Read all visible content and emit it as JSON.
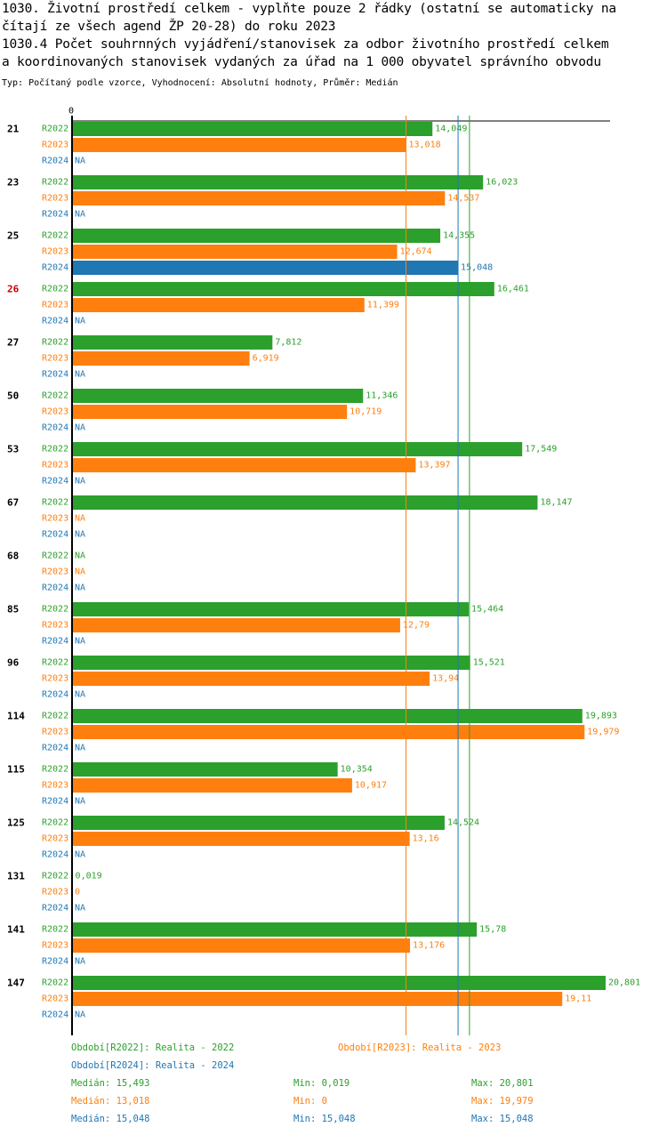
{
  "header": {
    "line1": "1030. Životní prostředí celkem - vyplňte pouze 2 řádky (ostatní se automaticky na",
    "line2": "čítají ze všech agend ŽP 20-28) do roku 2023",
    "line3": "1030.4 Počet souhrnných vyjádření/stanovisek za odbor životního prostředí celkem",
    "line4": "a koordinovaných stanovisek vydaných za úřad na 1 000 obyvatel správního obvodu",
    "subtitle": "Typ: Počítaný podle vzorce, Vyhodnocení: Absolutní hodnoty, Průměr: Medián"
  },
  "colors": {
    "R2022": "#2ca02c",
    "R2023": "#ff7f0e",
    "R2024": "#1f77b4",
    "highlight": "#cc0000"
  },
  "chart_data": {
    "type": "bar",
    "orientation": "horizontal",
    "axis_zero_label": "0",
    "xlim": [
      0,
      20.801
    ],
    "na_label": "NA",
    "highlight_group": "26",
    "series_names": [
      "R2022",
      "R2023",
      "R2024"
    ],
    "groups": [
      {
        "label": "21",
        "values": [
          {
            "v": 14.049,
            "t": "14,049"
          },
          {
            "v": 13.018,
            "t": "13,018"
          },
          {
            "v": null,
            "t": "NA"
          }
        ]
      },
      {
        "label": "23",
        "values": [
          {
            "v": 16.023,
            "t": "16,023"
          },
          {
            "v": 14.537,
            "t": "14,537"
          },
          {
            "v": null,
            "t": "NA"
          }
        ]
      },
      {
        "label": "25",
        "values": [
          {
            "v": 14.355,
            "t": "14,355"
          },
          {
            "v": 12.674,
            "t": "12,674"
          },
          {
            "v": 15.048,
            "t": "15,048"
          }
        ]
      },
      {
        "label": "26",
        "values": [
          {
            "v": 16.461,
            "t": "16,461"
          },
          {
            "v": 11.399,
            "t": "11,399"
          },
          {
            "v": null,
            "t": "NA"
          }
        ]
      },
      {
        "label": "27",
        "values": [
          {
            "v": 7.812,
            "t": "7,812"
          },
          {
            "v": 6.919,
            "t": "6,919"
          },
          {
            "v": null,
            "t": "NA"
          }
        ]
      },
      {
        "label": "50",
        "values": [
          {
            "v": 11.346,
            "t": "11,346"
          },
          {
            "v": 10.719,
            "t": "10,719"
          },
          {
            "v": null,
            "t": "NA"
          }
        ]
      },
      {
        "label": "53",
        "values": [
          {
            "v": 17.549,
            "t": "17,549"
          },
          {
            "v": 13.397,
            "t": "13,397"
          },
          {
            "v": null,
            "t": "NA"
          }
        ]
      },
      {
        "label": "67",
        "values": [
          {
            "v": 18.147,
            "t": "18,147"
          },
          {
            "v": null,
            "t": "NA"
          },
          {
            "v": null,
            "t": "NA"
          }
        ]
      },
      {
        "label": "68",
        "values": [
          {
            "v": null,
            "t": "NA"
          },
          {
            "v": null,
            "t": "NA"
          },
          {
            "v": null,
            "t": "NA"
          }
        ]
      },
      {
        "label": "85",
        "values": [
          {
            "v": 15.464,
            "t": "15,464"
          },
          {
            "v": 12.79,
            "t": "12,79"
          },
          {
            "v": null,
            "t": "NA"
          }
        ]
      },
      {
        "label": "96",
        "values": [
          {
            "v": 15.521,
            "t": "15,521"
          },
          {
            "v": 13.94,
            "t": "13,94"
          },
          {
            "v": null,
            "t": "NA"
          }
        ]
      },
      {
        "label": "114",
        "values": [
          {
            "v": 19.893,
            "t": "19,893"
          },
          {
            "v": 19.979,
            "t": "19,979"
          },
          {
            "v": null,
            "t": "NA"
          }
        ]
      },
      {
        "label": "115",
        "values": [
          {
            "v": 10.354,
            "t": "10,354"
          },
          {
            "v": 10.917,
            "t": "10,917"
          },
          {
            "v": null,
            "t": "NA"
          }
        ]
      },
      {
        "label": "125",
        "values": [
          {
            "v": 14.524,
            "t": "14,524"
          },
          {
            "v": 13.16,
            "t": "13,16"
          },
          {
            "v": null,
            "t": "NA"
          }
        ]
      },
      {
        "label": "131",
        "values": [
          {
            "v": 0.019,
            "t": "0,019"
          },
          {
            "v": 0,
            "t": "0"
          },
          {
            "v": null,
            "t": "NA"
          }
        ]
      },
      {
        "label": "141",
        "values": [
          {
            "v": 15.78,
            "t": "15,78"
          },
          {
            "v": 13.176,
            "t": "13,176"
          },
          {
            "v": null,
            "t": "NA"
          }
        ]
      },
      {
        "label": "147",
        "values": [
          {
            "v": 20.801,
            "t": "20,801"
          },
          {
            "v": 19.11,
            "t": "19,11"
          },
          {
            "v": null,
            "t": "NA"
          }
        ]
      }
    ],
    "median_lines": [
      {
        "series": "R2023",
        "value": 13.018
      },
      {
        "series": "R2024",
        "value": 15.048
      },
      {
        "series": "R2022",
        "value": 15.493
      }
    ]
  },
  "legend": {
    "r2022": "Období[R2022]: Realita - 2022",
    "r2023": "Období[R2023]: Realita - 2023",
    "r2024": "Období[R2024]: Realita - 2024"
  },
  "stats": {
    "r2022": {
      "median": "Medián: 15,493",
      "min": "Min: 0,019",
      "max": "Max: 20,801"
    },
    "r2023": {
      "median": "Medián: 13,018",
      "min": "Min: 0",
      "max": "Max: 19,979"
    },
    "r2024": {
      "median": "Medián: 15,048",
      "min": "Min: 15,048",
      "max": "Max: 15,048"
    }
  }
}
